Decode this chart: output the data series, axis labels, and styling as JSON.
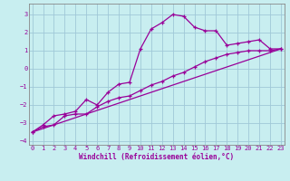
{
  "xlabel": "Windchill (Refroidissement éolien,°C)",
  "x_ticks": [
    0,
    1,
    2,
    3,
    4,
    5,
    6,
    7,
    8,
    9,
    10,
    11,
    12,
    13,
    14,
    15,
    16,
    17,
    18,
    19,
    20,
    21,
    22,
    23
  ],
  "ylim": [
    -4.2,
    3.6
  ],
  "xlim": [
    -0.3,
    23.3
  ],
  "yticks": [
    -4,
    -3,
    -2,
    -1,
    0,
    1,
    2,
    3
  ],
  "background_color": "#c8eef0",
  "grid_color": "#a0c8d8",
  "line_color": "#990099",
  "line1_x": [
    0,
    1,
    2,
    3,
    4,
    5,
    6,
    7,
    8,
    9,
    10,
    11,
    12,
    13,
    14,
    15,
    16,
    17,
    18,
    19,
    20,
    21,
    22,
    23
  ],
  "line1_y": [
    -3.5,
    -3.1,
    -2.6,
    -2.5,
    -2.35,
    -1.7,
    -2.0,
    -1.3,
    -0.85,
    -0.75,
    1.1,
    2.2,
    2.55,
    3.0,
    2.9,
    2.3,
    2.1,
    2.1,
    1.3,
    1.4,
    1.5,
    1.6,
    1.1,
    1.1
  ],
  "line2_x": [
    0,
    1,
    2,
    3,
    4,
    5,
    6,
    7,
    8,
    9,
    10,
    11,
    12,
    13,
    14,
    15,
    16,
    17,
    18,
    19,
    20,
    21,
    22,
    23
  ],
  "line2_y": [
    -3.5,
    -3.2,
    -3.1,
    -2.6,
    -2.5,
    -2.5,
    -2.1,
    -1.8,
    -1.6,
    -1.5,
    -1.2,
    -0.9,
    -0.7,
    -0.4,
    -0.2,
    0.1,
    0.4,
    0.6,
    0.8,
    0.9,
    1.0,
    1.0,
    1.0,
    1.1
  ],
  "line3_x": [
    0,
    23
  ],
  "line3_y": [
    -3.5,
    1.1
  ]
}
